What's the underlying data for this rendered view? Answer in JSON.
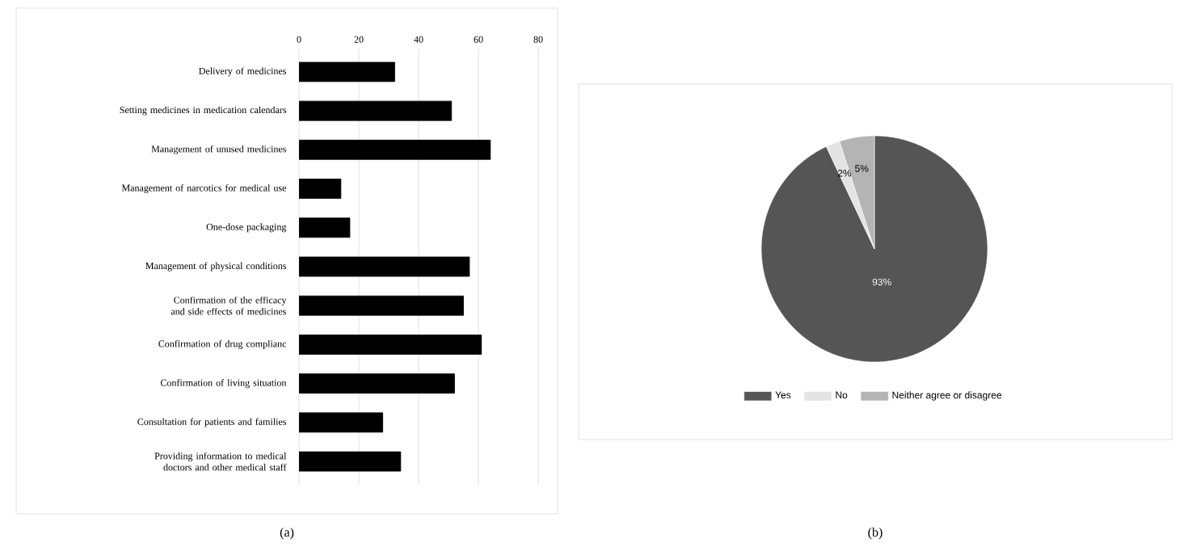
{
  "chart_data": [
    {
      "type": "bar",
      "orientation": "horizontal",
      "categories": [
        "Delivery of medicines",
        "Setting medicines in medication calendars",
        "Management of unused medicines",
        "Management of narcotics for medical use",
        "One-dose packaging",
        "Management of physical conditions",
        "Confirmation of the efficacy and side effects of medicines",
        "Confirmation of drug complianc",
        "Confirmation of living situation",
        "Consultation for patients and families",
        "Providing information to medical doctors and other medical staff"
      ],
      "values": [
        32,
        51,
        64,
        14,
        17,
        57,
        55,
        61,
        52,
        28,
        34
      ],
      "color": "#000000",
      "xlim": [
        0,
        80
      ],
      "xticks": [
        0,
        20,
        40,
        60,
        80
      ],
      "grid": "x",
      "annotations": [
        "(a)"
      ]
    },
    {
      "type": "pie",
      "categories": [
        "Yes",
        "No",
        "Neither agree or disagree"
      ],
      "values": [
        93,
        2,
        5
      ],
      "colors": [
        "#555555",
        "#e3e3e3",
        "#b4b4b4"
      ],
      "value_labels": [
        "93%",
        "2%",
        "5%"
      ],
      "legend": "bottom",
      "annotations": [
        "(b)"
      ]
    }
  ]
}
